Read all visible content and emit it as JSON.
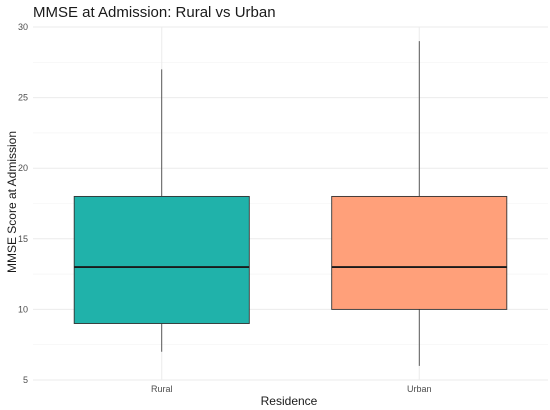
{
  "chart_data": {
    "type": "box",
    "title": "MMSE at Admission: Rural vs Urban",
    "xlabel": "Residence",
    "ylabel": "MMSE Score at Admission",
    "ylim": [
      5,
      30
    ],
    "yticks": [
      5,
      10,
      15,
      20,
      25,
      30
    ],
    "grid": true,
    "legend": "none",
    "categories": [
      "Rural",
      "Urban"
    ],
    "series": [
      {
        "category": "Rural",
        "min": 7,
        "q1": 9,
        "median": 13,
        "q3": 18,
        "max": 27,
        "color": "#20B2AA"
      },
      {
        "category": "Urban",
        "min": 6,
        "q1": 10,
        "median": 13,
        "q3": 18,
        "max": 29,
        "color": "#FFA07A"
      }
    ]
  }
}
